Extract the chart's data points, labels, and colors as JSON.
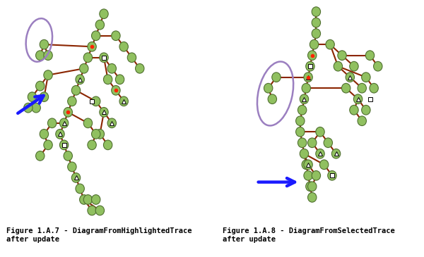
{
  "fig_width": 6.0,
  "fig_height": 3.65,
  "bg_color": "#ffffff",
  "border_color": "#cccccc",
  "caption1": "Figure 1.A.7 - DiagramFromHighlightedTrace\nafter update",
  "caption2": "Figure 1.A.8 - DiagramFromSelectedTrace\nafter update",
  "caption_fontsize": 7.5,
  "caption_color": "#000000",
  "node_color": "#90c060",
  "node_edge_color": "#507030",
  "line_color": "#8b2500",
  "ellipse_color": "#9b7fc0",
  "arrow_color": "#1a1aff",
  "red_dot_color": "#ff2200"
}
